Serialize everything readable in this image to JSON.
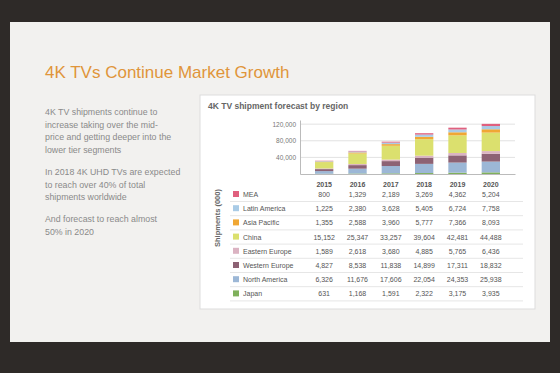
{
  "slide_title": "4K TVs Continue Market Growth",
  "paragraphs": [
    [
      "4K TV shipments continue to",
      "increase taking over the mid-",
      "price and getting deeper into the",
      "lower tier segments"
    ],
    [
      "In 2018 4K UHD TVs are expected",
      "to reach over 40% of total",
      "shipments worldwide"
    ],
    [
      "And forecast to reach almost",
      "50% in 2020"
    ]
  ],
  "chart_data": {
    "type": "bar",
    "stacked": true,
    "grid": true,
    "title": "4K TV shipment forecast by region",
    "y_label": "Shipments (000)",
    "categories": [
      "2015",
      "2016",
      "2017",
      "2018",
      "2019",
      "2020"
    ],
    "ylim": [
      0,
      130000
    ],
    "yticks": [
      {
        "value": 40000,
        "label": "40,000"
      },
      {
        "value": 80000,
        "label": "80,000"
      },
      {
        "value": 120000,
        "label": "120,000"
      }
    ],
    "series": [
      {
        "name": "MEA",
        "color": "#e0607e",
        "values": [
          800,
          1329,
          2189,
          3269,
          4362,
          5204
        ],
        "value_labels": [
          "800",
          "1,329",
          "2,189",
          "3,269",
          "4,362",
          "5,204"
        ]
      },
      {
        "name": "Latin America",
        "color": "#a9cbe6",
        "values": [
          1225,
          2380,
          3628,
          5405,
          6724,
          7758
        ],
        "value_labels": [
          "1,225",
          "2,380",
          "3,628",
          "5,405",
          "6,724",
          "7,758"
        ]
      },
      {
        "name": "Asia Pacific",
        "color": "#f0a734",
        "values": [
          1355,
          2588,
          3960,
          5777,
          7366,
          8093
        ],
        "value_labels": [
          "1,355",
          "2,588",
          "3,960",
          "5,777",
          "7,366",
          "8,093"
        ]
      },
      {
        "name": "China",
        "color": "#dbe06e",
        "values": [
          15152,
          25347,
          33257,
          39604,
          42481,
          44488
        ],
        "value_labels": [
          "15,152",
          "25,347",
          "33,257",
          "39,604",
          "42,481",
          "44,488"
        ]
      },
      {
        "name": "Eastern Europe",
        "color": "#dbb3c2",
        "values": [
          1589,
          2618,
          3680,
          4885,
          5765,
          6436
        ],
        "value_labels": [
          "1,589",
          "2,618",
          "3,680",
          "4,885",
          "5,765",
          "6,436"
        ]
      },
      {
        "name": "Western Europe",
        "color": "#8d6274",
        "values": [
          4827,
          8538,
          11838,
          14899,
          17311,
          18832
        ],
        "value_labels": [
          "4,827",
          "8,538",
          "11,838",
          "14,899",
          "17,311",
          "18,832"
        ]
      },
      {
        "name": "North America",
        "color": "#9cb7d6",
        "values": [
          6326,
          11676,
          17606,
          22054,
          24353,
          25938
        ],
        "value_labels": [
          "6,326",
          "11,676",
          "17,606",
          "22,054",
          "24,353",
          "25,938"
        ]
      },
      {
        "name": "Japan",
        "color": "#7fb05b",
        "values": [
          631,
          1168,
          1591,
          2322,
          3175,
          3935
        ],
        "value_labels": [
          "631",
          "1,168",
          "1,591",
          "2,322",
          "3,175",
          "3,935"
        ]
      }
    ]
  }
}
